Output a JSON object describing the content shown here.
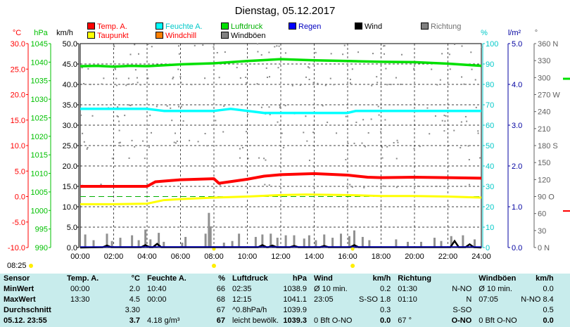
{
  "chart_data": {
    "type": "line",
    "title": "Dienstag, 05.12.2017",
    "x_ticks": [
      "00:00",
      "02:00",
      "04:00",
      "06:00",
      "08:00",
      "10:00",
      "12:00",
      "14:00",
      "16:00",
      "18:00",
      "20:00",
      "22:00",
      "24:00"
    ],
    "axes": {
      "temp": {
        "unit": "°C",
        "ticks": [
          "30.0",
          "25.0",
          "20.0",
          "15.0",
          "10.0",
          "5.0",
          "0.0",
          "-5.0",
          "-10.0"
        ],
        "range": [
          -10,
          30
        ],
        "color": "#ff0000"
      },
      "pressure": {
        "unit": "hPa",
        "ticks": [
          "1045",
          "1040",
          "1035",
          "1030",
          "1025",
          "1020",
          "1015",
          "1010",
          "1005",
          "1000",
          "995",
          "990"
        ],
        "range": [
          990,
          1045
        ],
        "color": "#00c000"
      },
      "wind": {
        "unit": "km/h",
        "ticks": [
          "50.0",
          "45.0",
          "40.0",
          "35.0",
          "30.0",
          "25.0",
          "20.0",
          "15.0",
          "10.0",
          "5.0",
          "0.0"
        ],
        "range": [
          0,
          50
        ],
        "color": "#000000"
      },
      "humidity": {
        "unit": "%",
        "ticks": [
          "100",
          "90",
          "80",
          "70",
          "60",
          "50",
          "40",
          "30",
          "20",
          "10",
          "0"
        ],
        "range": [
          0,
          100
        ],
        "color": "#00c8c8"
      },
      "rain": {
        "unit": "l/m²",
        "ticks": [
          "5.0",
          "4.0",
          "3.0",
          "2.0",
          "1.0",
          "0.0"
        ],
        "range": [
          0,
          5
        ],
        "color": "#0000a0"
      },
      "direction": {
        "unit": "°",
        "ticks": [
          "360 N",
          "330",
          "300",
          "270 W",
          "240",
          "210",
          "180 S",
          "150",
          "120",
          "90 O",
          "60",
          "30",
          "0 N"
        ],
        "range": [
          0,
          360
        ],
        "color": "#606060"
      }
    },
    "legend": [
      {
        "name": "Temp. A.",
        "color": "#ff0000"
      },
      {
        "name": "Feuchte A.",
        "color": "#00ffff"
      },
      {
        "name": "Luftdruck",
        "color": "#00e000"
      },
      {
        "name": "Regen",
        "color": "#0000ff"
      },
      {
        "name": "Wind",
        "color": "#000000"
      },
      {
        "name": "Richtung",
        "color": "#808080"
      },
      {
        "name": "Taupunkt",
        "color": "#ffff00"
      },
      {
        "name": "Windchill",
        "color": "#ff8000"
      },
      {
        "name": "Windböen",
        "color": "#808080"
      }
    ],
    "series": [
      {
        "name": "Temp. A.",
        "axis": "temp",
        "x": [
          0,
          2,
          4,
          4.5,
          6,
          8,
          8.3,
          10,
          11,
          12,
          14,
          16,
          17.2,
          18,
          20,
          22,
          24
        ],
        "y": [
          2.0,
          2.0,
          2.0,
          2.9,
          3.3,
          3.5,
          2.6,
          3.4,
          4.0,
          4.3,
          4.5,
          4.2,
          3.8,
          3.7,
          3.8,
          3.7,
          3.6
        ]
      },
      {
        "name": "Taupunkt",
        "axis": "temp",
        "x": [
          0,
          2,
          4,
          5,
          6,
          8,
          10,
          12,
          13.5,
          16,
          18,
          20,
          22,
          24
        ],
        "y": [
          -1.5,
          -1.5,
          -1.4,
          -0.7,
          -0.5,
          -0.2,
          0.0,
          0.3,
          0.4,
          0.3,
          0.1,
          0.1,
          0.0,
          -0.2
        ]
      },
      {
        "name": "Feuchte A.",
        "axis": "humidity",
        "x": [
          0,
          2,
          4,
          5,
          6,
          8,
          9,
          10,
          11,
          12,
          14,
          16,
          16.5,
          18,
          20,
          22,
          24
        ],
        "y": [
          68,
          68,
          68,
          67,
          67,
          67,
          68,
          67,
          66,
          66,
          66,
          66,
          67,
          67,
          67,
          67,
          67
        ]
      },
      {
        "name": "Luftdruck",
        "axis": "pressure",
        "x": [
          0,
          1,
          2,
          3,
          4,
          6,
          8,
          10,
          12,
          14,
          16,
          18,
          20,
          22,
          24
        ],
        "y": [
          1038.9,
          1039.0,
          1038.8,
          1039.0,
          1038.9,
          1039.4,
          1039.7,
          1040.3,
          1040.8,
          1040.5,
          1040.3,
          1040.1,
          1040.0,
          1039.6,
          1039.0
        ]
      }
    ],
    "gust_bars": [
      {
        "x": 0.3,
        "y": 3.2
      },
      {
        "x": 0.8,
        "y": 1.8
      },
      {
        "x": 1.6,
        "y": 3.4
      },
      {
        "x": 1.9,
        "y": 1.6
      },
      {
        "x": 2.4,
        "y": 2.4
      },
      {
        "x": 3.1,
        "y": 3.0
      },
      {
        "x": 3.5,
        "y": 1.8
      },
      {
        "x": 3.9,
        "y": 4.4
      },
      {
        "x": 4.2,
        "y": 2.0
      },
      {
        "x": 4.7,
        "y": 3.6
      },
      {
        "x": 5.0,
        "y": 1.4
      },
      {
        "x": 6.1,
        "y": 1.2
      },
      {
        "x": 6.3,
        "y": 2.6
      },
      {
        "x": 7.5,
        "y": 3.4
      },
      {
        "x": 7.7,
        "y": 8.5
      },
      {
        "x": 7.8,
        "y": 5.2
      },
      {
        "x": 8.6,
        "y": 1.2
      },
      {
        "x": 9.1,
        "y": 1.6
      },
      {
        "x": 9.5,
        "y": 3.4
      },
      {
        "x": 10.5,
        "y": 2.6
      },
      {
        "x": 10.9,
        "y": 3.2
      },
      {
        "x": 11.4,
        "y": 3.4
      },
      {
        "x": 11.8,
        "y": 2.4
      },
      {
        "x": 12.3,
        "y": 3.0
      },
      {
        "x": 12.8,
        "y": 3.0
      },
      {
        "x": 13.4,
        "y": 2.2
      },
      {
        "x": 13.7,
        "y": 3.0
      },
      {
        "x": 14.1,
        "y": 1.8
      },
      {
        "x": 14.6,
        "y": 3.2
      },
      {
        "x": 15.1,
        "y": 2.4
      },
      {
        "x": 15.6,
        "y": 3.4
      },
      {
        "x": 16.1,
        "y": 2.8
      },
      {
        "x": 16.4,
        "y": 4.2
      },
      {
        "x": 16.9,
        "y": 2.6
      },
      {
        "x": 17.3,
        "y": 1.8
      },
      {
        "x": 18.9,
        "y": 2.0
      },
      {
        "x": 19.6,
        "y": 1.4
      },
      {
        "x": 20.4,
        "y": 1.4
      },
      {
        "x": 21.2,
        "y": 2.4
      },
      {
        "x": 21.6,
        "y": 1.6
      },
      {
        "x": 22.2,
        "y": 2.8
      },
      {
        "x": 22.9,
        "y": 3.0
      },
      {
        "x": 23.6,
        "y": 2.0
      }
    ],
    "wind_bursts": [
      {
        "x": 1.6,
        "y": 0.5
      },
      {
        "x": 3.9,
        "y": 0.6
      },
      {
        "x": 4.6,
        "y": 0.9
      },
      {
        "x": 10.9,
        "y": 0.6
      },
      {
        "x": 11.5,
        "y": 0.5
      },
      {
        "x": 12.8,
        "y": 0.4
      },
      {
        "x": 14.6,
        "y": 0.4
      },
      {
        "x": 16.4,
        "y": 0.6
      },
      {
        "x": 22.4,
        "y": 1.6
      },
      {
        "x": 23.3,
        "y": 0.8
      }
    ]
  },
  "time_label": "08:25",
  "table": {
    "headers": [
      "Sensor",
      "Temp. A.",
      "°C",
      "Feuchte A.",
      "%",
      "Luftdruck",
      "hPa",
      "Wind",
      "km/h",
      "Richtung",
      "",
      "Windböen",
      "km/h"
    ],
    "rows": [
      {
        "label": "MinWert",
        "cells": [
          "00:00",
          "2.0",
          "10:40",
          "66",
          "02:35",
          "1038.9",
          "Ø 10 min.",
          "0.2",
          "01:30",
          "N-NO",
          "Ø 10 min.",
          "0.0"
        ]
      },
      {
        "label": "MaxWert",
        "cells": [
          "13:30",
          "4.5",
          "00:00",
          "68",
          "12:15",
          "1041.1",
          "23:05",
          "S-SO 1.8",
          "01:10",
          "N",
          "07:05",
          "N-NO 8.4"
        ]
      },
      {
        "label": "Durchschnitt",
        "cells": [
          "",
          "3.30",
          "",
          "67",
          "^0.8hPa/h",
          "1039.9",
          "",
          "0.3",
          "",
          "S-SO",
          "",
          "0.5"
        ]
      },
      {
        "label": "05.12. 23:55",
        "cells": [
          "",
          "3.7",
          "4.18 g/m³",
          "67",
          "leicht bewölk.",
          "1039.3",
          "0 Bft O-NO",
          "0.0",
          "67 °",
          "O-NO",
          "0 Bft O-NO",
          "0.0"
        ]
      }
    ]
  }
}
